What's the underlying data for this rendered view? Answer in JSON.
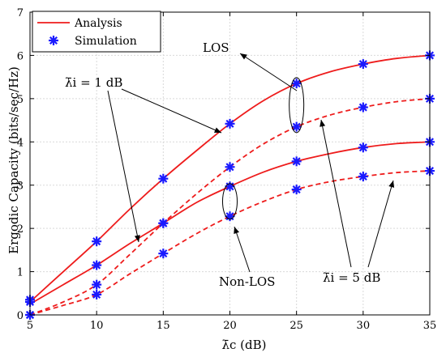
{
  "chart_data": {
    "type": "line",
    "xlabel": "λ̄c (dB)",
    "ylabel": "Ergodic Capacity (bits/sec/Hz)",
    "xlim": [
      5,
      35
    ],
    "ylim": [
      0,
      7
    ],
    "xticks": [
      5,
      10,
      15,
      20,
      25,
      30,
      35
    ],
    "yticks": [
      0,
      1,
      2,
      3,
      4,
      5,
      6,
      7
    ],
    "grid": true,
    "legend": {
      "placement": "top-left",
      "entries": [
        {
          "label": "Analysis",
          "style": "red solid line"
        },
        {
          "label": "Simulation",
          "style": "blue asterisk"
        }
      ]
    },
    "colors": {
      "analysis": "#ee1c1c",
      "simulation": "#1a1aff"
    },
    "analysis_curves": [
      {
        "id": "los-1db",
        "dash": "solid",
        "x": [
          5,
          7.5,
          10,
          12.5,
          15,
          17.5,
          20,
          22.5,
          25,
          27.5,
          30,
          32.5,
          35
        ],
        "y": [
          0.3,
          1.0,
          1.7,
          2.45,
          3.15,
          3.8,
          4.42,
          4.95,
          5.35,
          5.62,
          5.8,
          5.93,
          6.0
        ]
      },
      {
        "id": "los-5db",
        "dash": "dashed",
        "x": [
          5,
          7.5,
          10,
          12.5,
          15,
          17.5,
          20,
          22.5,
          25,
          27.5,
          30,
          32.5,
          35
        ],
        "y": [
          0.0,
          0.3,
          0.7,
          1.4,
          2.12,
          2.8,
          3.42,
          3.95,
          4.35,
          4.62,
          4.8,
          4.93,
          5.0
        ]
      },
      {
        "id": "nlos-1db",
        "dash": "solid",
        "x": [
          5,
          7.5,
          10,
          12.5,
          15,
          17.5,
          20,
          22.5,
          25,
          27.5,
          30,
          32.5,
          35
        ],
        "y": [
          0.25,
          0.7,
          1.15,
          1.65,
          2.12,
          2.6,
          2.97,
          3.3,
          3.55,
          3.73,
          3.87,
          3.96,
          4.0
        ]
      },
      {
        "id": "nlos-5db",
        "dash": "dashed",
        "x": [
          5,
          7.5,
          10,
          12.5,
          15,
          17.5,
          20,
          22.5,
          25,
          27.5,
          30,
          32.5,
          35
        ],
        "y": [
          0.0,
          0.22,
          0.47,
          0.95,
          1.42,
          1.88,
          2.28,
          2.62,
          2.9,
          3.08,
          3.2,
          3.29,
          3.33
        ]
      }
    ],
    "simulation_points": [
      {
        "x": 5,
        "y": 0.35
      },
      {
        "x": 10,
        "y": 1.7
      },
      {
        "x": 15,
        "y": 3.15
      },
      {
        "x": 20,
        "y": 4.42
      },
      {
        "x": 25,
        "y": 5.35
      },
      {
        "x": 30,
        "y": 5.8
      },
      {
        "x": 35,
        "y": 6.0
      },
      {
        "x": 5,
        "y": 0.0
      },
      {
        "x": 10,
        "y": 0.7
      },
      {
        "x": 15,
        "y": 2.12
      },
      {
        "x": 20,
        "y": 3.42
      },
      {
        "x": 25,
        "y": 4.35
      },
      {
        "x": 30,
        "y": 4.8
      },
      {
        "x": 35,
        "y": 5.0
      },
      {
        "x": 5,
        "y": 0.3
      },
      {
        "x": 10,
        "y": 1.15
      },
      {
        "x": 15,
        "y": 2.12
      },
      {
        "x": 20,
        "y": 2.97
      },
      {
        "x": 25,
        "y": 3.55
      },
      {
        "x": 30,
        "y": 3.87
      },
      {
        "x": 35,
        "y": 4.0
      },
      {
        "x": 5,
        "y": 0.0
      },
      {
        "x": 10,
        "y": 0.47
      },
      {
        "x": 15,
        "y": 1.42
      },
      {
        "x": 20,
        "y": 2.28
      },
      {
        "x": 25,
        "y": 2.9
      },
      {
        "x": 30,
        "y": 3.2
      },
      {
        "x": 35,
        "y": 3.33
      }
    ],
    "annotations": [
      {
        "text": "LOS"
      },
      {
        "text": "λ̄i = 1 dB"
      },
      {
        "text": "Non-LOS"
      },
      {
        "text": "λ̄i = 5 dB"
      }
    ]
  }
}
